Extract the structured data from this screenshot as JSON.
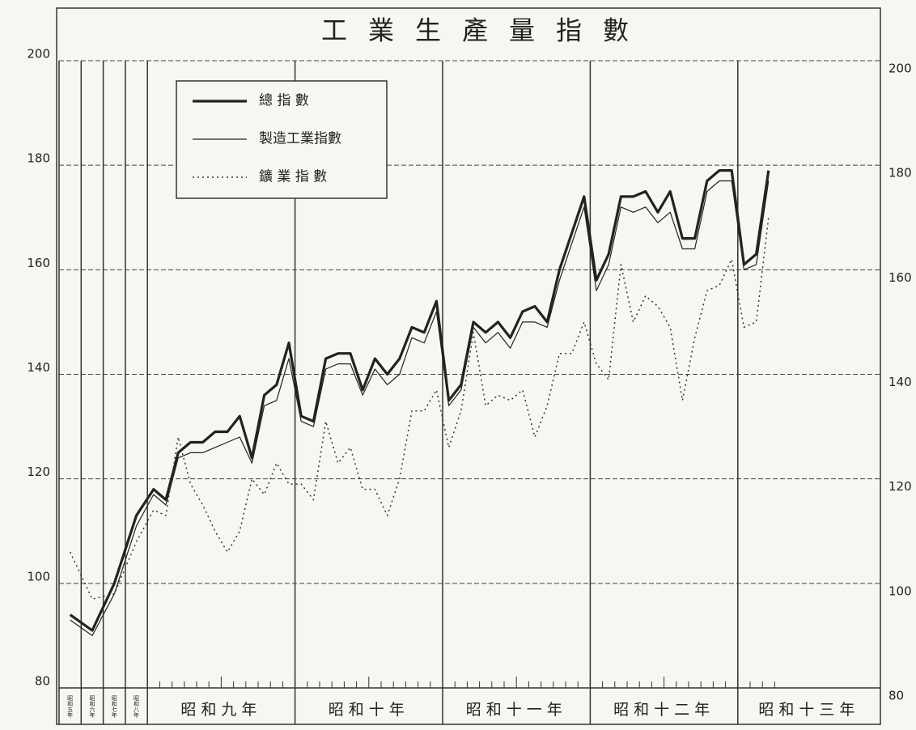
{
  "chart_data": {
    "type": "line",
    "title": "工業生產量指數",
    "categories": [
      "昭和五年",
      "昭和六年",
      "昭和七年",
      "昭和八年",
      "昭和九年",
      null,
      null,
      null,
      null,
      null,
      null,
      null,
      null,
      null,
      null,
      null,
      "昭和十年",
      null,
      null,
      null,
      null,
      null,
      null,
      null,
      null,
      null,
      null,
      null,
      "昭和十一年",
      null,
      null,
      null,
      null,
      null,
      null,
      null,
      null,
      null,
      null,
      null,
      "昭和十二年",
      null,
      null,
      null,
      null,
      null,
      null,
      null,
      null,
      null,
      null,
      null,
      "昭和十三年",
      null,
      null
    ],
    "series": [
      {
        "name": "總 指 數",
        "color": "#222",
        "style": "thick",
        "values": [
          94,
          91,
          100,
          113,
          118,
          116,
          125,
          127,
          127,
          129,
          129,
          132,
          124,
          136,
          138,
          146,
          132,
          131,
          143,
          144,
          144,
          137,
          143,
          140,
          143,
          149,
          148,
          154,
          135,
          138,
          150,
          148,
          150,
          147,
          152,
          153,
          150,
          160,
          167,
          174,
          158,
          163,
          174,
          174,
          175,
          171,
          175,
          166,
          166,
          177,
          179,
          179,
          161,
          163,
          179
        ]
      },
      {
        "name": "製造工業指數",
        "color": "#222",
        "style": "solid",
        "values": [
          93,
          90,
          98,
          111,
          117,
          115,
          124,
          125,
          125,
          126,
          127,
          128,
          123,
          134,
          135,
          143,
          131,
          130,
          141,
          142,
          142,
          136,
          141,
          138,
          140,
          147,
          146,
          152,
          134,
          137,
          149,
          146,
          148,
          145,
          150,
          150,
          149,
          158,
          165,
          172,
          156,
          161,
          172,
          171,
          172,
          169,
          171,
          164,
          164,
          175,
          177,
          177,
          160,
          161,
          177
        ]
      },
      {
        "name": "鑛 業 指 數",
        "color": "#333",
        "style": "dotted",
        "values": [
          106,
          97,
          98,
          108,
          114,
          113,
          128,
          119,
          115,
          110,
          106,
          110,
          120,
          117,
          123,
          119,
          119,
          116,
          131,
          123,
          126,
          118,
          118,
          113,
          120,
          133,
          133,
          137,
          126,
          133,
          148,
          134,
          136,
          135,
          137,
          128,
          134,
          144,
          144,
          150,
          142,
          139,
          161,
          150,
          155,
          153,
          149,
          135,
          147,
          156,
          157,
          162,
          149,
          150,
          170
        ]
      }
    ],
    "ylim": [
      80,
      200
    ],
    "yticks": [
      80,
      100,
      120,
      140,
      160,
      180,
      200
    ],
    "grid": true
  }
}
